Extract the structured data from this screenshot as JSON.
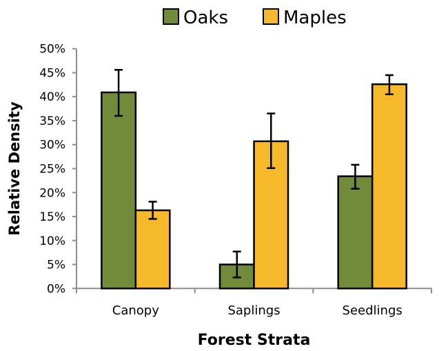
{
  "chart_data": {
    "type": "bar",
    "title": "",
    "xlabel": "Forest Strata",
    "ylabel": "Relative Density",
    "categories": [
      "Canopy",
      "Saplings",
      "Seedlings"
    ],
    "series": [
      {
        "name": "Oaks",
        "color": "#718b3a",
        "values": [
          40.9,
          5.0,
          23.4
        ],
        "error_low": [
          36.0,
          2.3,
          20.8
        ],
        "error_high": [
          45.6,
          7.7,
          25.8
        ]
      },
      {
        "name": "Maples",
        "color": "#f6b92b",
        "values": [
          16.3,
          30.7,
          42.6
        ],
        "error_low": [
          14.5,
          25.1,
          40.5
        ],
        "error_high": [
          18.1,
          36.5,
          44.5
        ]
      }
    ],
    "ylim": [
      0,
      50
    ],
    "yticks": [
      "0%",
      "5%",
      "10%",
      "15%",
      "20%",
      "25%",
      "30%",
      "35%",
      "40%",
      "45%",
      "50%"
    ],
    "grid": false,
    "legend": "top"
  }
}
